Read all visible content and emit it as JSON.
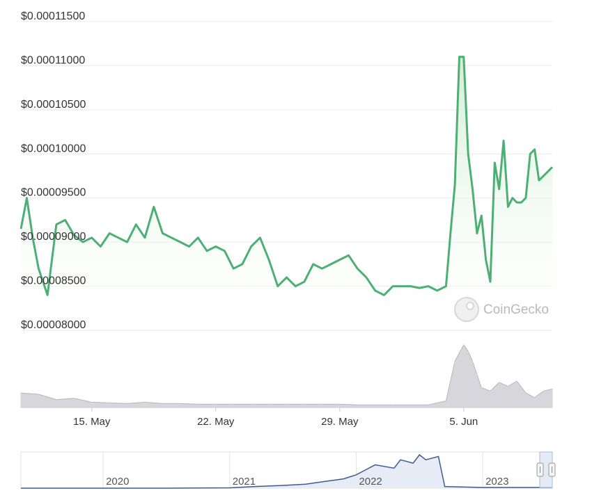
{
  "watermark": "CoinGecko",
  "colors": {
    "price_line": "#4caf74",
    "price_fill": "#e3f3e3",
    "volume": "#c9c9cf",
    "navigator_line": "#3b5b8f",
    "navigator_fill": "#e6ebf5",
    "grid": "#e9e9e9"
  },
  "chart_data": {
    "type": "line",
    "title": "",
    "xlabel": "",
    "ylabel": "",
    "grid": true,
    "legend": "none",
    "x_range": [
      "2023-05-11",
      "2023-06-10"
    ],
    "y_range": [
      8e-05,
      0.000115
    ],
    "y_ticks": [
      "$0.00008000",
      "$0.00008500",
      "$0.00009000",
      "$0.00009500",
      "$0.00010000",
      "$0.00010500",
      "$0.00011000",
      "$0.00011500"
    ],
    "y_tick_values": [
      8e-05,
      8.5e-05,
      9e-05,
      9.5e-05,
      0.0001,
      0.000105,
      0.00011,
      0.000115
    ],
    "x_ticks": [
      {
        "label": "15. May",
        "date": "2023-05-15"
      },
      {
        "label": "22. May",
        "date": "2023-05-22"
      },
      {
        "label": "29. May",
        "date": "2023-05-29"
      },
      {
        "label": "5. Jun",
        "date": "2023-06-05"
      }
    ],
    "series": [
      {
        "x": [
          "2023-05-11",
          "2023-05-11T08:00",
          "2023-05-11T16:00",
          "2023-05-12",
          "2023-05-12T12:00",
          "2023-05-13",
          "2023-05-13T12:00",
          "2023-05-14",
          "2023-05-14T12:00",
          "2023-05-15",
          "2023-05-15T12:00",
          "2023-05-16",
          "2023-05-16T12:00",
          "2023-05-17",
          "2023-05-17T12:00",
          "2023-05-18",
          "2023-05-18T12:00",
          "2023-05-19",
          "2023-05-19T12:00",
          "2023-05-20",
          "2023-05-20T12:00",
          "2023-05-21",
          "2023-05-21T12:00",
          "2023-05-22",
          "2023-05-22T12:00",
          "2023-05-23",
          "2023-05-23T12:00",
          "2023-05-24",
          "2023-05-24T12:00",
          "2023-05-25",
          "2023-05-25T12:00",
          "2023-05-26",
          "2023-05-26T12:00",
          "2023-05-27",
          "2023-05-27T12:00",
          "2023-05-28",
          "2023-05-28T12:00",
          "2023-05-29",
          "2023-05-29T12:00",
          "2023-05-30",
          "2023-05-30T12:00",
          "2023-05-31",
          "2023-05-31T12:00",
          "2023-06-01",
          "2023-06-01T12:00",
          "2023-06-02",
          "2023-06-02T12:00",
          "2023-06-03",
          "2023-06-03T12:00",
          "2023-06-04",
          "2023-06-04T06:00",
          "2023-06-04T12:00",
          "2023-06-04T18:00",
          "2023-06-05",
          "2023-06-05T06:00",
          "2023-06-05T12:00",
          "2023-06-05T18:00",
          "2023-06-06",
          "2023-06-06T06:00",
          "2023-06-06T12:00",
          "2023-06-06T18:00",
          "2023-06-07",
          "2023-06-07T06:00",
          "2023-06-07T12:00",
          "2023-06-07T18:00",
          "2023-06-08",
          "2023-06-08T06:00",
          "2023-06-08T12:00",
          "2023-06-08T18:00",
          "2023-06-09",
          "2023-06-09T06:00",
          "2023-06-09T12:00",
          "2023-06-09T18:00",
          "2023-06-10"
        ],
        "y": [
          9.15e-05,
          9.5e-05,
          9.05e-05,
          8.7e-05,
          8.4e-05,
          9.2e-05,
          9.25e-05,
          9.08e-05,
          9e-05,
          9.05e-05,
          8.95e-05,
          9.1e-05,
          9.05e-05,
          9e-05,
          9.2e-05,
          9.05e-05,
          9.4e-05,
          9.1e-05,
          9.05e-05,
          9e-05,
          8.95e-05,
          9.05e-05,
          8.9e-05,
          8.95e-05,
          8.9e-05,
          8.7e-05,
          8.75e-05,
          8.95e-05,
          9.05e-05,
          8.8e-05,
          8.5e-05,
          8.6e-05,
          8.5e-05,
          8.55e-05,
          8.75e-05,
          8.7e-05,
          8.75e-05,
          8.8e-05,
          8.85e-05,
          8.7e-05,
          8.6e-05,
          8.45e-05,
          8.4e-05,
          8.5e-05,
          8.5e-05,
          8.5e-05,
          8.48e-05,
          8.5e-05,
          8.45e-05,
          8.5e-05,
          9.1e-05,
          9.65e-05,
          0.000111,
          0.000111,
          0.0001,
          9.6e-05,
          9.1e-05,
          9.3e-05,
          8.8e-05,
          8.55e-05,
          9.9e-05,
          9.6e-05,
          0.0001015,
          9.4e-05,
          9.5e-05,
          9.45e-05,
          9.45e-05,
          9.5e-05,
          0.0001,
          0.0001005,
          9.7e-05,
          9.75e-05,
          9.8e-05,
          9.85e-05
        ]
      }
    ],
    "volume": {
      "x": [
        "2023-05-11",
        "2023-05-12",
        "2023-05-13",
        "2023-05-14",
        "2023-05-15",
        "2023-05-16",
        "2023-05-17",
        "2023-05-18",
        "2023-05-19",
        "2023-05-20",
        "2023-05-21",
        "2023-05-22",
        "2023-05-23",
        "2023-05-24",
        "2023-05-25",
        "2023-05-26",
        "2023-05-27",
        "2023-05-28",
        "2023-05-29",
        "2023-05-30",
        "2023-05-31",
        "2023-06-01",
        "2023-06-02",
        "2023-06-03",
        "2023-06-04",
        "2023-06-04T12:00",
        "2023-06-05",
        "2023-06-05T06:00",
        "2023-06-05T12:00",
        "2023-06-05T18:00",
        "2023-06-06",
        "2023-06-06T12:00",
        "2023-06-07",
        "2023-06-07T12:00",
        "2023-06-08",
        "2023-06-08T12:00",
        "2023-06-09",
        "2023-06-09T12:00",
        "2023-06-10"
      ],
      "y": [
        0.22,
        0.2,
        0.12,
        0.14,
        0.08,
        0.07,
        0.06,
        0.08,
        0.06,
        0.06,
        0.05,
        0.05,
        0.05,
        0.05,
        0.05,
        0.05,
        0.05,
        0.05,
        0.05,
        0.04,
        0.04,
        0.04,
        0.04,
        0.04,
        0.1,
        0.7,
        0.95,
        0.85,
        0.7,
        0.5,
        0.3,
        0.25,
        0.38,
        0.32,
        0.4,
        0.22,
        0.15,
        0.25,
        0.28
      ]
    },
    "navigator": {
      "x_ticks": [
        "2020",
        "2021",
        "2022",
        "2023"
      ],
      "x_tick_positions": [
        2020.0,
        2021.0,
        2022.0,
        2023.0
      ],
      "x_range": [
        2019.35,
        2023.55
      ],
      "x": [
        2019.35,
        2020.5,
        2021.0,
        2021.2,
        2021.4,
        2021.6,
        2021.75,
        2021.9,
        2022.0,
        2022.05,
        2022.15,
        2022.3,
        2022.35,
        2022.45,
        2022.5,
        2022.55,
        2022.65,
        2022.7,
        2023.0,
        2023.55
      ],
      "y": [
        0.0,
        0.0,
        0.01,
        0.05,
        0.08,
        0.12,
        0.2,
        0.28,
        0.4,
        0.5,
        0.7,
        0.6,
        0.85,
        0.75,
        1.0,
        0.85,
        0.95,
        0.05,
        0.02,
        0.02
      ]
    }
  }
}
